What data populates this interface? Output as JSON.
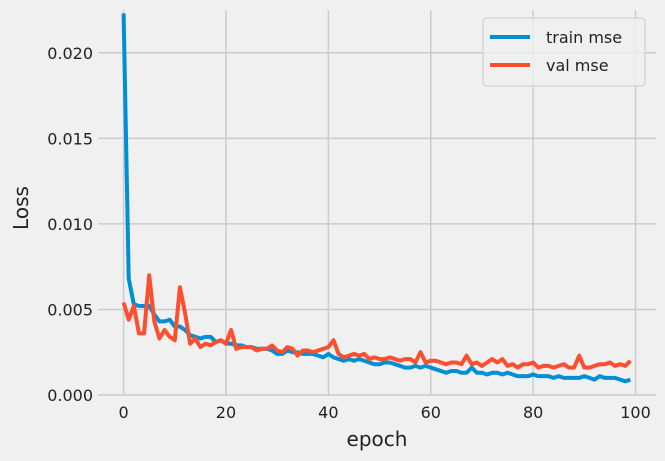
{
  "chart_data": {
    "type": "line",
    "title": "",
    "xlabel": "epoch",
    "ylabel": "Loss",
    "xlim": [
      -5,
      104
    ],
    "ylim": [
      0,
      0.0225
    ],
    "xticks": [
      0,
      20,
      40,
      60,
      80,
      100
    ],
    "xtick_labels": [
      "0",
      "20",
      "40",
      "60",
      "80",
      "100"
    ],
    "yticks": [
      0,
      0.005,
      0.01,
      0.015,
      0.02
    ],
    "ytick_labels": [
      "0.000",
      "0.005",
      "0.010",
      "0.015",
      "0.020"
    ],
    "grid": true,
    "legend_position": "top-right",
    "series": [
      {
        "name": "train mse",
        "color": "#008fd5",
        "values": [
          0.0223,
          0.0068,
          0.0053,
          0.0052,
          0.0052,
          0.0052,
          0.0047,
          0.0043,
          0.0043,
          0.0044,
          0.004,
          0.004,
          0.0038,
          0.0035,
          0.0034,
          0.0033,
          0.0034,
          0.0034,
          0.0031,
          0.0032,
          0.003,
          0.003,
          0.0029,
          0.0029,
          0.0028,
          0.0028,
          0.0027,
          0.0027,
          0.0027,
          0.0026,
          0.0024,
          0.0024,
          0.0026,
          0.0025,
          0.0025,
          0.0024,
          0.0024,
          0.0024,
          0.0023,
          0.0022,
          0.0024,
          0.0022,
          0.0021,
          0.002,
          0.0021,
          0.002,
          0.0021,
          0.002,
          0.0019,
          0.0018,
          0.0018,
          0.0019,
          0.0019,
          0.0018,
          0.0017,
          0.0016,
          0.0016,
          0.0017,
          0.0016,
          0.0017,
          0.0016,
          0.0015,
          0.0014,
          0.0013,
          0.0014,
          0.0014,
          0.0013,
          0.0013,
          0.0016,
          0.0013,
          0.0013,
          0.0012,
          0.0013,
          0.0013,
          0.0012,
          0.0013,
          0.0012,
          0.0011,
          0.0011,
          0.0011,
          0.0012,
          0.0011,
          0.0011,
          0.0011,
          0.001,
          0.0011,
          0.001,
          0.001,
          0.001,
          0.001,
          0.0011,
          0.001,
          0.0009,
          0.0011,
          0.001,
          0.001,
          0.001,
          0.0009,
          0.0008,
          0.0009
        ]
      },
      {
        "name": "val mse",
        "color": "#fc4f30",
        "values": [
          0.0054,
          0.0044,
          0.0052,
          0.0036,
          0.0036,
          0.007,
          0.0043,
          0.0033,
          0.0038,
          0.0034,
          0.0032,
          0.0063,
          0.0048,
          0.003,
          0.0033,
          0.0028,
          0.003,
          0.0029,
          0.0031,
          0.0032,
          0.003,
          0.0038,
          0.0027,
          0.0028,
          0.0028,
          0.0028,
          0.0026,
          0.0027,
          0.0027,
          0.0029,
          0.0026,
          0.0025,
          0.0028,
          0.0027,
          0.0023,
          0.0026,
          0.0026,
          0.0025,
          0.0026,
          0.0027,
          0.0028,
          0.0032,
          0.0024,
          0.0022,
          0.0023,
          0.0024,
          0.0023,
          0.0024,
          0.0021,
          0.0022,
          0.0021,
          0.0021,
          0.0022,
          0.0021,
          0.002,
          0.0021,
          0.0021,
          0.0019,
          0.0025,
          0.0019,
          0.002,
          0.002,
          0.0019,
          0.0018,
          0.0019,
          0.0019,
          0.0018,
          0.0023,
          0.0018,
          0.0019,
          0.0017,
          0.0019,
          0.0021,
          0.0019,
          0.0021,
          0.0017,
          0.0018,
          0.0016,
          0.0018,
          0.0018,
          0.0019,
          0.0016,
          0.0017,
          0.0017,
          0.0016,
          0.0017,
          0.0018,
          0.0016,
          0.0016,
          0.0023,
          0.0016,
          0.0016,
          0.0017,
          0.0018,
          0.0018,
          0.0019,
          0.0017,
          0.0018,
          0.0017,
          0.002
        ]
      }
    ]
  }
}
